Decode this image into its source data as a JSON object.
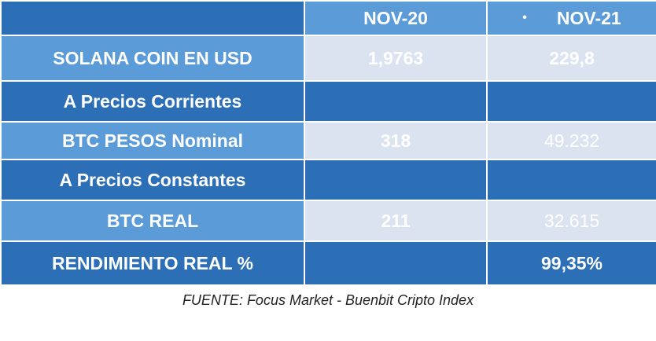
{
  "header": {
    "col1": "NOV-20",
    "col2_bullet": "•",
    "col2": "NOV-21"
  },
  "rows": [
    {
      "label": "SOLANA COIN EN USD",
      "v1": "1,9763",
      "v2": "229,8"
    },
    {
      "label": "A Precios Corrientes",
      "v1": "",
      "v2": ""
    },
    {
      "label": "BTC PESOS Nominal",
      "v1": "318",
      "v2": "49.232"
    },
    {
      "label": "A Precios Constantes",
      "v1": "",
      "v2": ""
    },
    {
      "label": "BTC REAL",
      "v1": "211",
      "v2": "32.615"
    },
    {
      "label": "RENDIMIENTO REAL %",
      "v1": "",
      "v2": "99,35%"
    }
  ],
  "source": "FUENTE: Focus Market - Buenbit Cripto Index",
  "colors": {
    "dark_blue": "#2c6fb7",
    "mid_blue": "#5b9bd8",
    "light_cell": "#dbe3f1"
  }
}
